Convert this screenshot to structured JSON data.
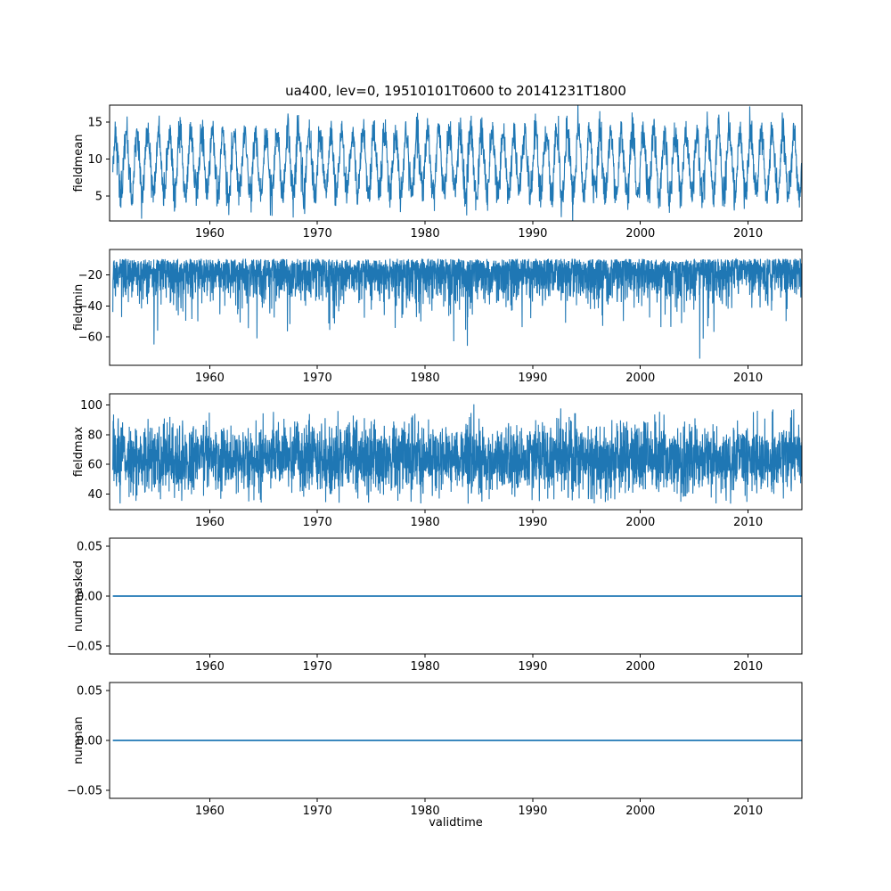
{
  "figure": {
    "title": "ua400, lev=0, 19510101T0600 to 20141231T1800",
    "xlabel": "validtime",
    "line_color": "#1f77b4",
    "background": "#ffffff",
    "xlim": [
      1950.7,
      2015.0
    ],
    "xticks": {
      "values": [
        1960,
        1970,
        1980,
        1990,
        2000,
        2010
      ],
      "labels": [
        "1960",
        "1970",
        "1980",
        "1990",
        "2000",
        "2010"
      ]
    }
  },
  "chart_data": [
    {
      "type": "line",
      "name": "fieldmean",
      "ylabel": "fieldmean",
      "ylim": [
        1.6,
        17.3
      ],
      "yticks": {
        "values": [
          15,
          10,
          5
        ],
        "labels": [
          "15",
          "10",
          "5"
        ]
      },
      "approx_value_range": [
        2.3,
        16.6
      ],
      "pattern": "dense annual seasonal oscillation between about 4 and 15 with noise",
      "series_spec": {
        "kind": "seasonal_noise",
        "base": 9.4,
        "amplitude": 4.2,
        "noise": 1.25,
        "points": 2900,
        "seed": 42
      }
    },
    {
      "type": "line",
      "name": "fieldmin",
      "ylabel": "fieldmin",
      "ylim": [
        -78.5,
        -3.5
      ],
      "yticks": {
        "values": [
          -20,
          -40,
          -60
        ],
        "labels": [
          "−20",
          "−40",
          "−60"
        ]
      },
      "approx_value_range": [
        -75,
        -9
      ],
      "pattern": "dense noisy band near -10 to -45 with occasional downward spikes to about -75",
      "series_spec": {
        "kind": "spiky_negative",
        "band_top": 9.5,
        "spread": 12.5,
        "spike_prob": 0.012,
        "spike_extra": 28,
        "floor": -76,
        "points": 3600,
        "seed": 7
      }
    },
    {
      "type": "line",
      "name": "fieldmax",
      "ylabel": "fieldmax",
      "ylim": [
        29.5,
        107.5
      ],
      "yticks": {
        "values": [
          100,
          80,
          60,
          40
        ],
        "labels": [
          "100",
          "80",
          "60",
          "40"
        ]
      },
      "approx_value_range": [
        33,
        104
      ],
      "pattern": "dense noisy band around mean 65, mostly 45-90, spikes up to about 104 and down to 33",
      "series_spec": {
        "kind": "band_noise",
        "mean": 64,
        "sd": 11.5,
        "min": 33.5,
        "max": 104.5,
        "points": 3600,
        "seed": 13
      }
    },
    {
      "type": "line",
      "name": "nummasked",
      "ylabel": "nummasked",
      "ylim": [
        -0.058,
        0.058
      ],
      "yticks": {
        "values": [
          0.05,
          0.0,
          -0.05
        ],
        "labels": [
          "0.05",
          "0.00",
          "−0.05"
        ]
      },
      "approx_value_range": [
        0,
        0
      ],
      "pattern": "constant zero line",
      "series_spec": {
        "kind": "constant",
        "value": 0
      }
    },
    {
      "type": "line",
      "name": "numnan",
      "ylabel": "numnan",
      "ylim": [
        -0.058,
        0.058
      ],
      "yticks": {
        "values": [
          0.05,
          0.0,
          -0.05
        ],
        "labels": [
          "0.05",
          "0.00",
          "−0.05"
        ]
      },
      "approx_value_range": [
        0,
        0
      ],
      "pattern": "constant zero line",
      "series_spec": {
        "kind": "constant",
        "value": 0
      }
    }
  ]
}
